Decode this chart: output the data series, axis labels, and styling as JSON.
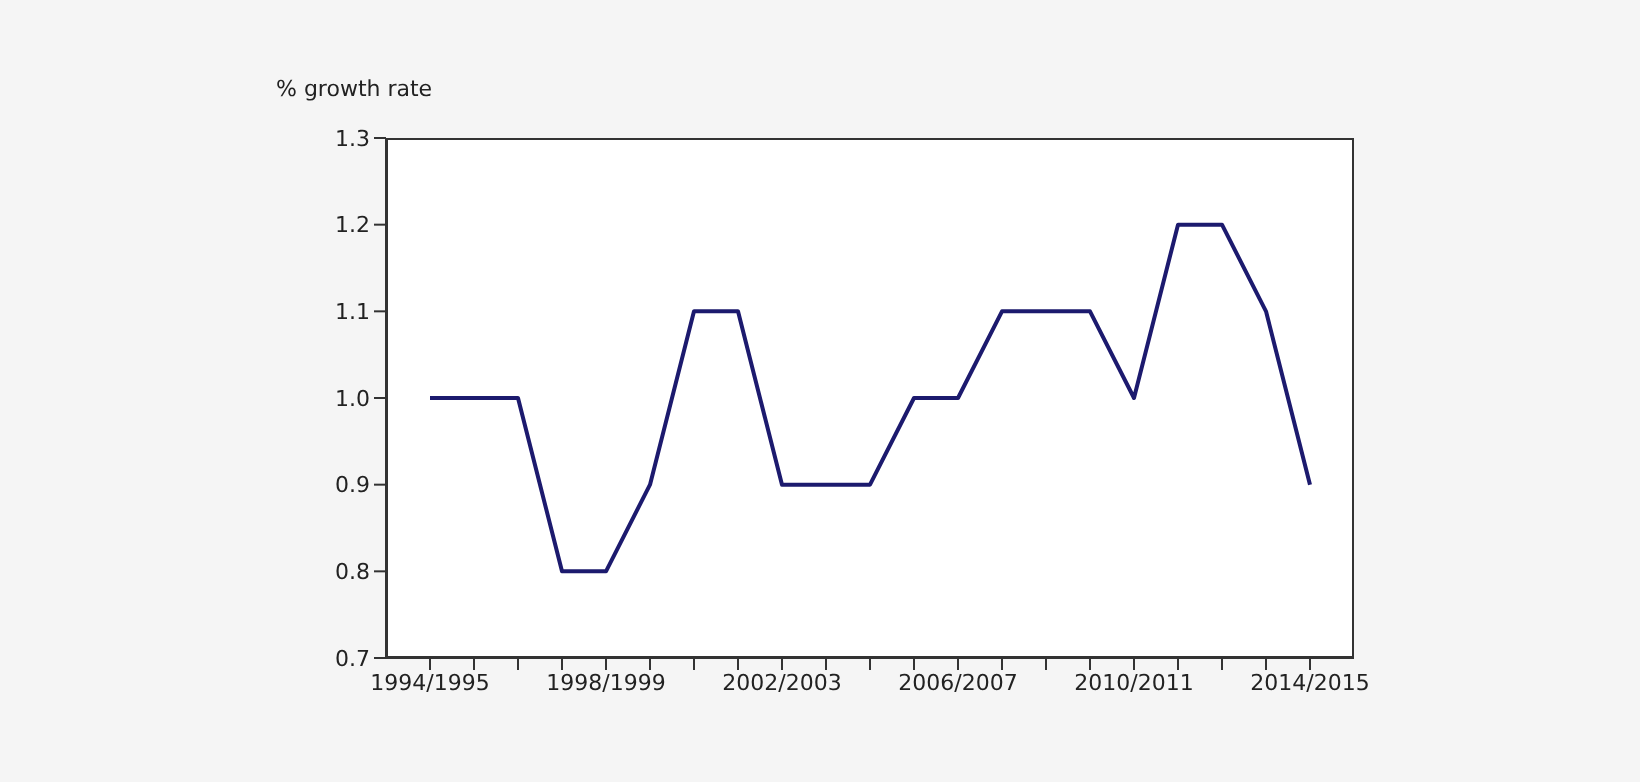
{
  "chart_data": {
    "type": "line",
    "ylabel": "% growth rate",
    "categories": [
      "1994/1995",
      null,
      null,
      null,
      "1998/1999",
      null,
      null,
      null,
      "2002/2003",
      null,
      null,
      null,
      "2006/2007",
      null,
      null,
      null,
      "2010/2011",
      null,
      null,
      null,
      "2014/2015"
    ],
    "series": [
      {
        "color": "#1c1a6e",
        "values": [
          1.0,
          1.0,
          1.0,
          0.8,
          0.8,
          0.9,
          1.1,
          1.1,
          0.9,
          0.9,
          0.9,
          1.0,
          1.0,
          1.1,
          1.1,
          1.1,
          1.0,
          1.2,
          1.2,
          1.1,
          0.9
        ]
      }
    ],
    "ylim": [
      0.7,
      1.3
    ],
    "yticks": [
      {
        "value": 0.7,
        "label": "0.7"
      },
      {
        "value": 0.8,
        "label": "0.8"
      },
      {
        "value": 0.9,
        "label": "0.9"
      },
      {
        "value": 1.0,
        "label": "1.0"
      },
      {
        "value": 1.1,
        "label": "1.1"
      },
      {
        "value": 1.2,
        "label": "1.2"
      },
      {
        "value": 1.3,
        "label": "1.3"
      }
    ],
    "grid": false,
    "legend": false,
    "marker": "none",
    "line_style": "solid"
  }
}
